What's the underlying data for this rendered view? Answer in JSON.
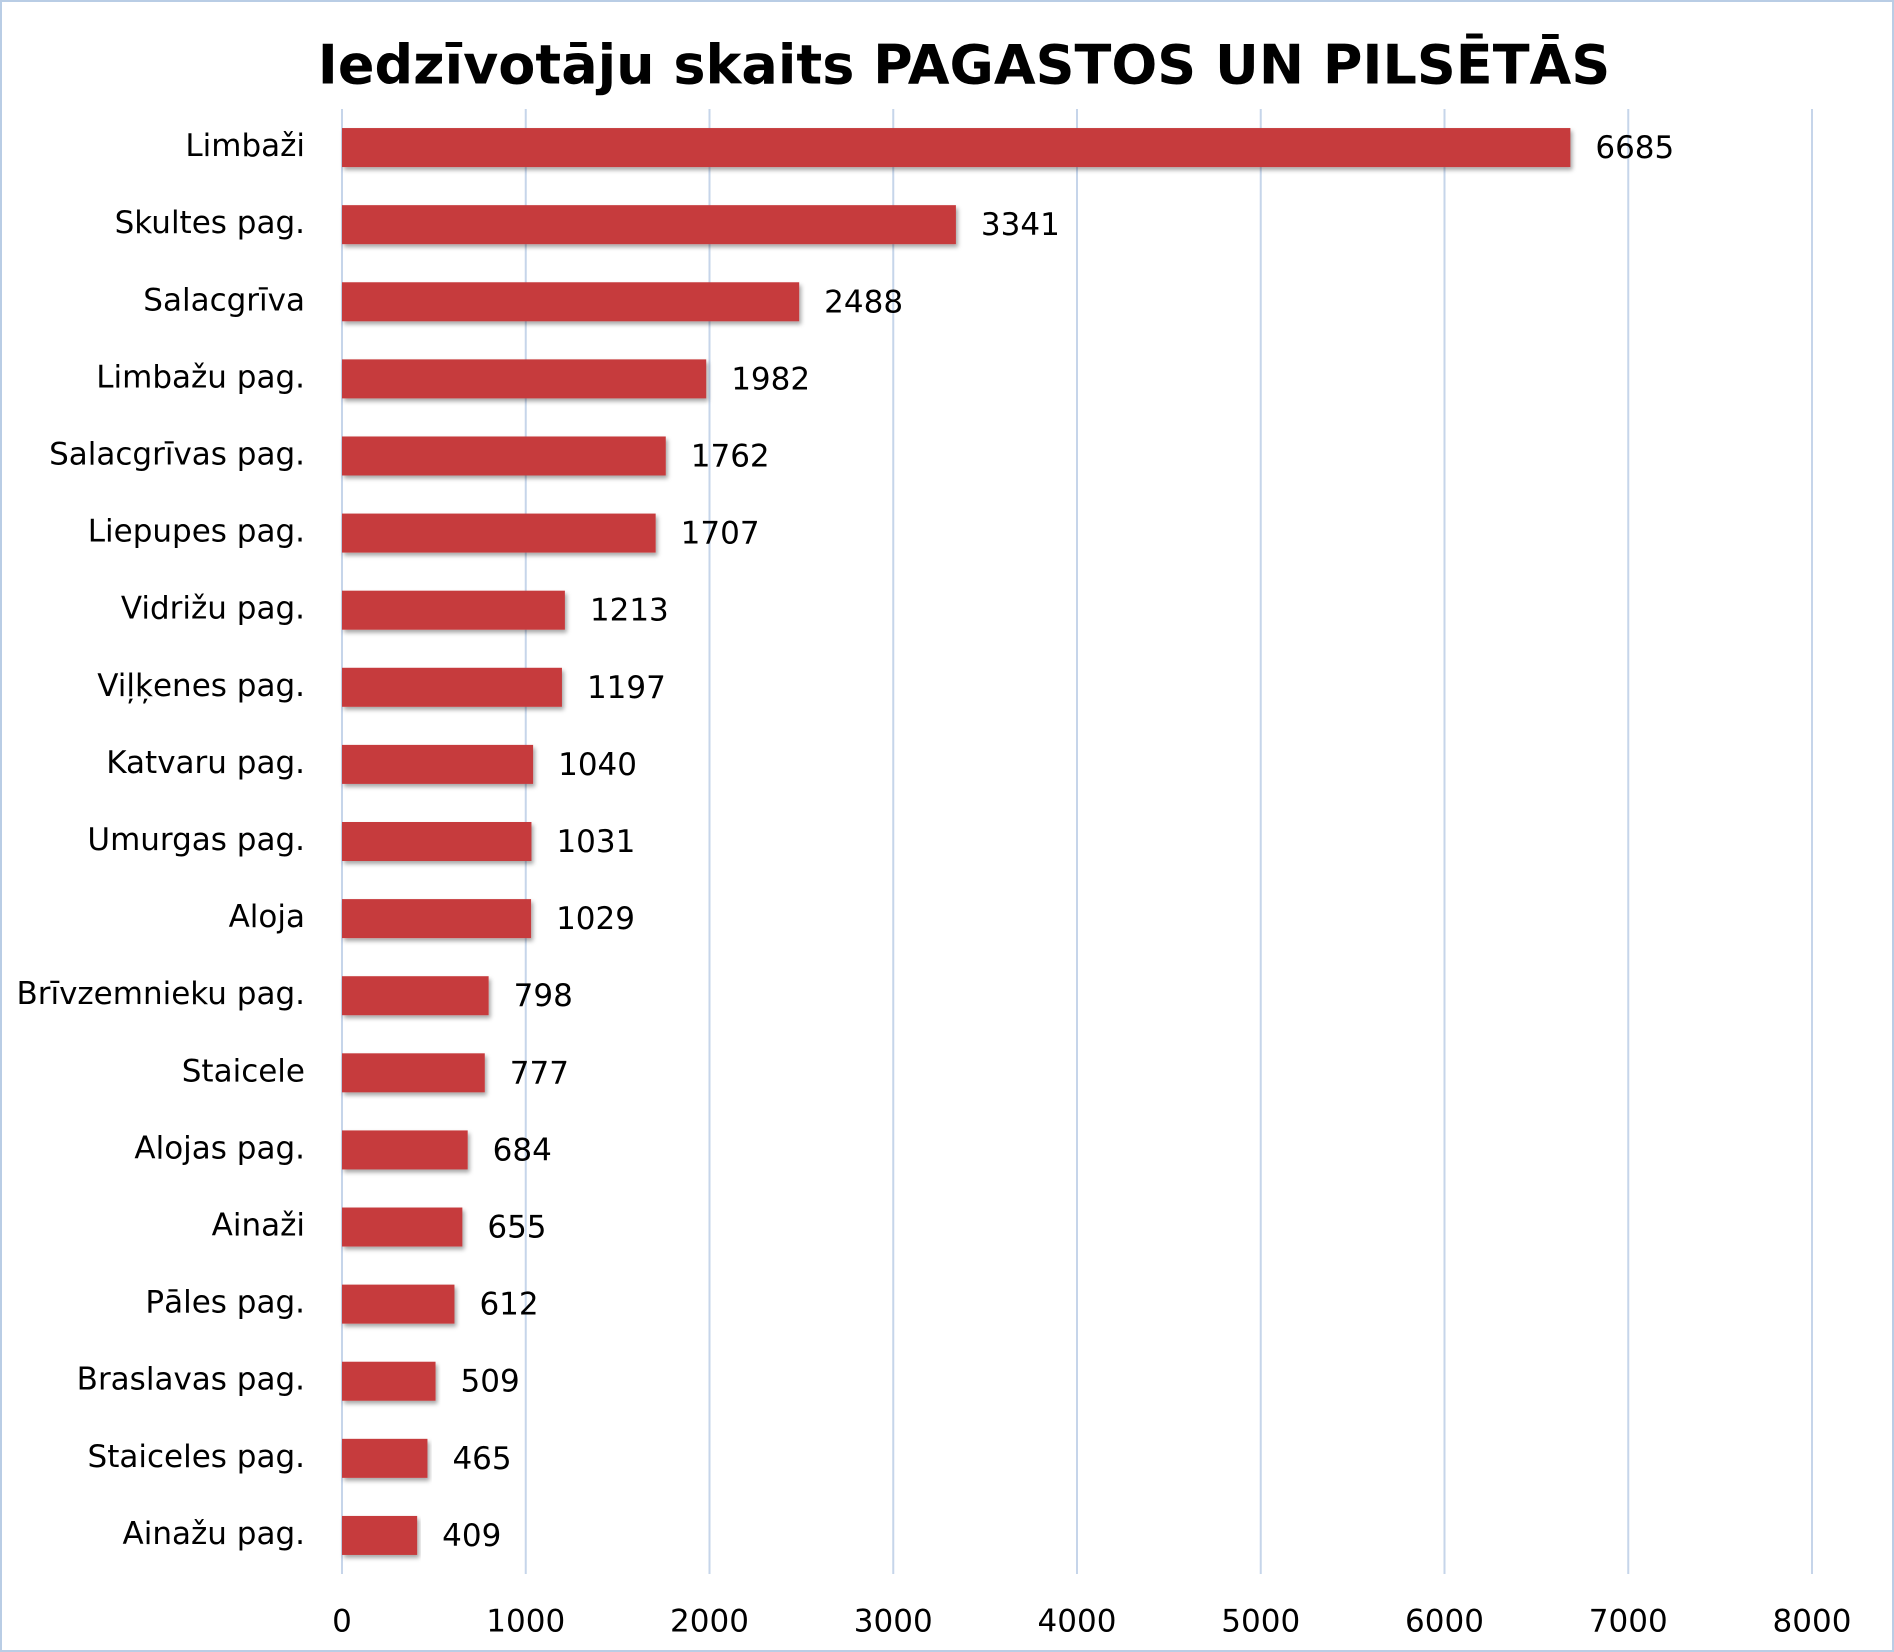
{
  "chart_data": {
    "type": "barh",
    "title": "Iedzīvotāju skaits PAGASTOS UN PILSĒTĀS",
    "categories": [
      "Limbaži",
      "Skultes pag.",
      "Salacgrīva",
      "Limbažu pag.",
      "Salacgrīvas pag.",
      "Liepupes pag.",
      "Vidrižu pag.",
      "Viļķenes pag.",
      "Katvaru pag.",
      "Umurgas pag.",
      "Aloja",
      "Brīvzemnieku pag.",
      "Staicele",
      "Alojas pag.",
      "Ainaži",
      "Pāles pag.",
      "Braslavas pag.",
      "Staiceles pag.",
      "Ainažu pag."
    ],
    "values": [
      6685,
      3341,
      2488,
      1982,
      1762,
      1707,
      1213,
      1197,
      1040,
      1031,
      1029,
      798,
      777,
      684,
      655,
      612,
      509,
      465,
      409
    ],
    "color": "#c63a3c",
    "xlim": [
      0,
      8000
    ],
    "xticks": [
      0,
      1000,
      2000,
      3000,
      4000,
      5000,
      6000,
      7000,
      8000
    ],
    "grid": true
  }
}
